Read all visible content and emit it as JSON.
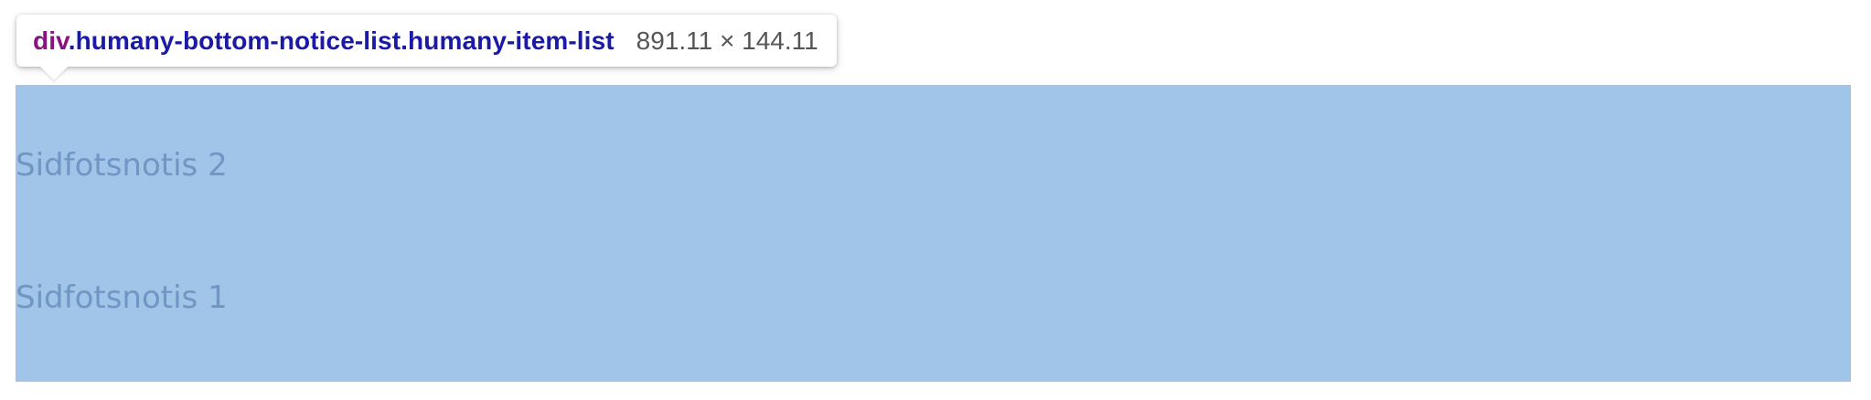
{
  "inspector": {
    "tag": "div",
    "classes": ".humany-bottom-notice-list.humany-item-list",
    "dimensions": "891.11 × 144.11"
  },
  "notice_list": {
    "items": [
      {
        "label": "Sidfotsnotis 2"
      },
      {
        "label": "Sidfotsnotis 1"
      }
    ]
  },
  "colors": {
    "highlight": "#a0c5e8",
    "item_text": "#6f96c4",
    "tag_color": "#881280",
    "class_color": "#1a1aa6",
    "dims_color": "#555555"
  }
}
